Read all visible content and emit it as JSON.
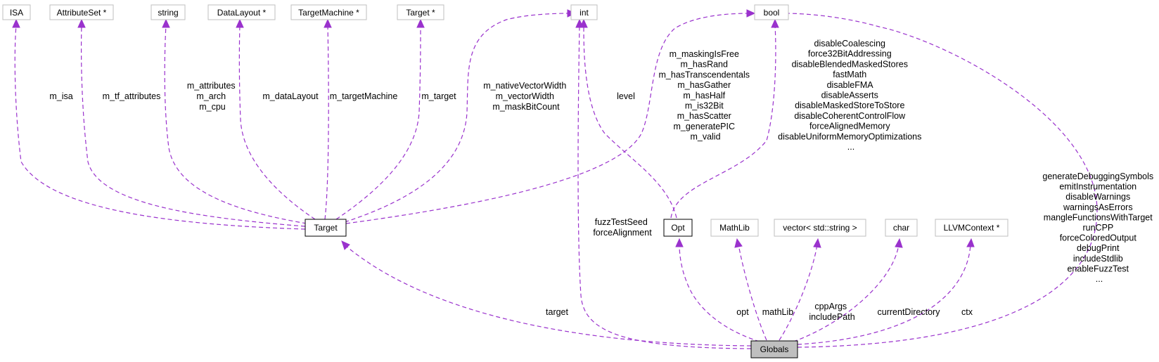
{
  "nodes": {
    "isa": "ISA",
    "attributeset": "AttributeSet *",
    "string": "string",
    "datalayout": "DataLayout *",
    "targetmachine": "TargetMachine *",
    "targetptr": "Target *",
    "int": "int",
    "bool": "bool",
    "target": "Target",
    "opt": "Opt",
    "mathlib": "MathLib",
    "vector": "vector< std::string >",
    "char": "char",
    "llvmcontext": "LLVMContext *",
    "globals": "Globals"
  },
  "edge_labels": {
    "m_isa": [
      "m_isa"
    ],
    "m_tf_attributes": [
      "m_tf_attributes"
    ],
    "string_members": [
      "m_attributes",
      "m_arch",
      "m_cpu"
    ],
    "m_datalayout": [
      "m_dataLayout"
    ],
    "m_targetmachine": [
      "m_targetMachine"
    ],
    "m_target": [
      "m_target"
    ],
    "int_members": [
      "m_nativeVectorWidth",
      "m_vectorWidth",
      "m_maskBitCount"
    ],
    "level": [
      "level"
    ],
    "bool_target_members": [
      "m_maskingIsFree",
      "m_hasRand",
      "m_hasTranscendentals",
      "m_hasGather",
      "m_hasHalf",
      "m_is32Bit",
      "m_hasScatter",
      "m_generatePIC",
      "m_valid"
    ],
    "bool_opt_members": [
      "disableCoalescing",
      "force32BitAddressing",
      "disableBlendedMaskedStores",
      "fastMath",
      "disableFMA",
      "disableAsserts",
      "disableMaskedStoreToStore",
      "disableCoherentControlFlow",
      "forceAlignedMemory",
      "disableUniformMemoryOptimizations",
      "..."
    ],
    "bool_globals_members": [
      "generateDebuggingSymbols",
      "emitInstrumentation",
      "disableWarnings",
      "warningsAsErrors",
      "mangleFunctionsWithTarget",
      "runCPP",
      "forceColoredOutput",
      "debugPrint",
      "includeStdlib",
      "enableFuzzTest",
      "..."
    ],
    "int_globals_members": [
      "fuzzTestSeed",
      "forceAlignment"
    ],
    "target": [
      "target"
    ],
    "opt": [
      "opt"
    ],
    "mathlib": [
      "mathLib"
    ],
    "vector_members": [
      "cppArgs",
      "includePath"
    ],
    "currentdirectory": [
      "currentDirectory"
    ],
    "ctx": [
      "ctx"
    ]
  },
  "colors": {
    "edge": "#9a32cd",
    "node_border_external": "#bfbfbf",
    "node_border_class": "#000000",
    "highlight_fill": "#bfbfbf"
  }
}
